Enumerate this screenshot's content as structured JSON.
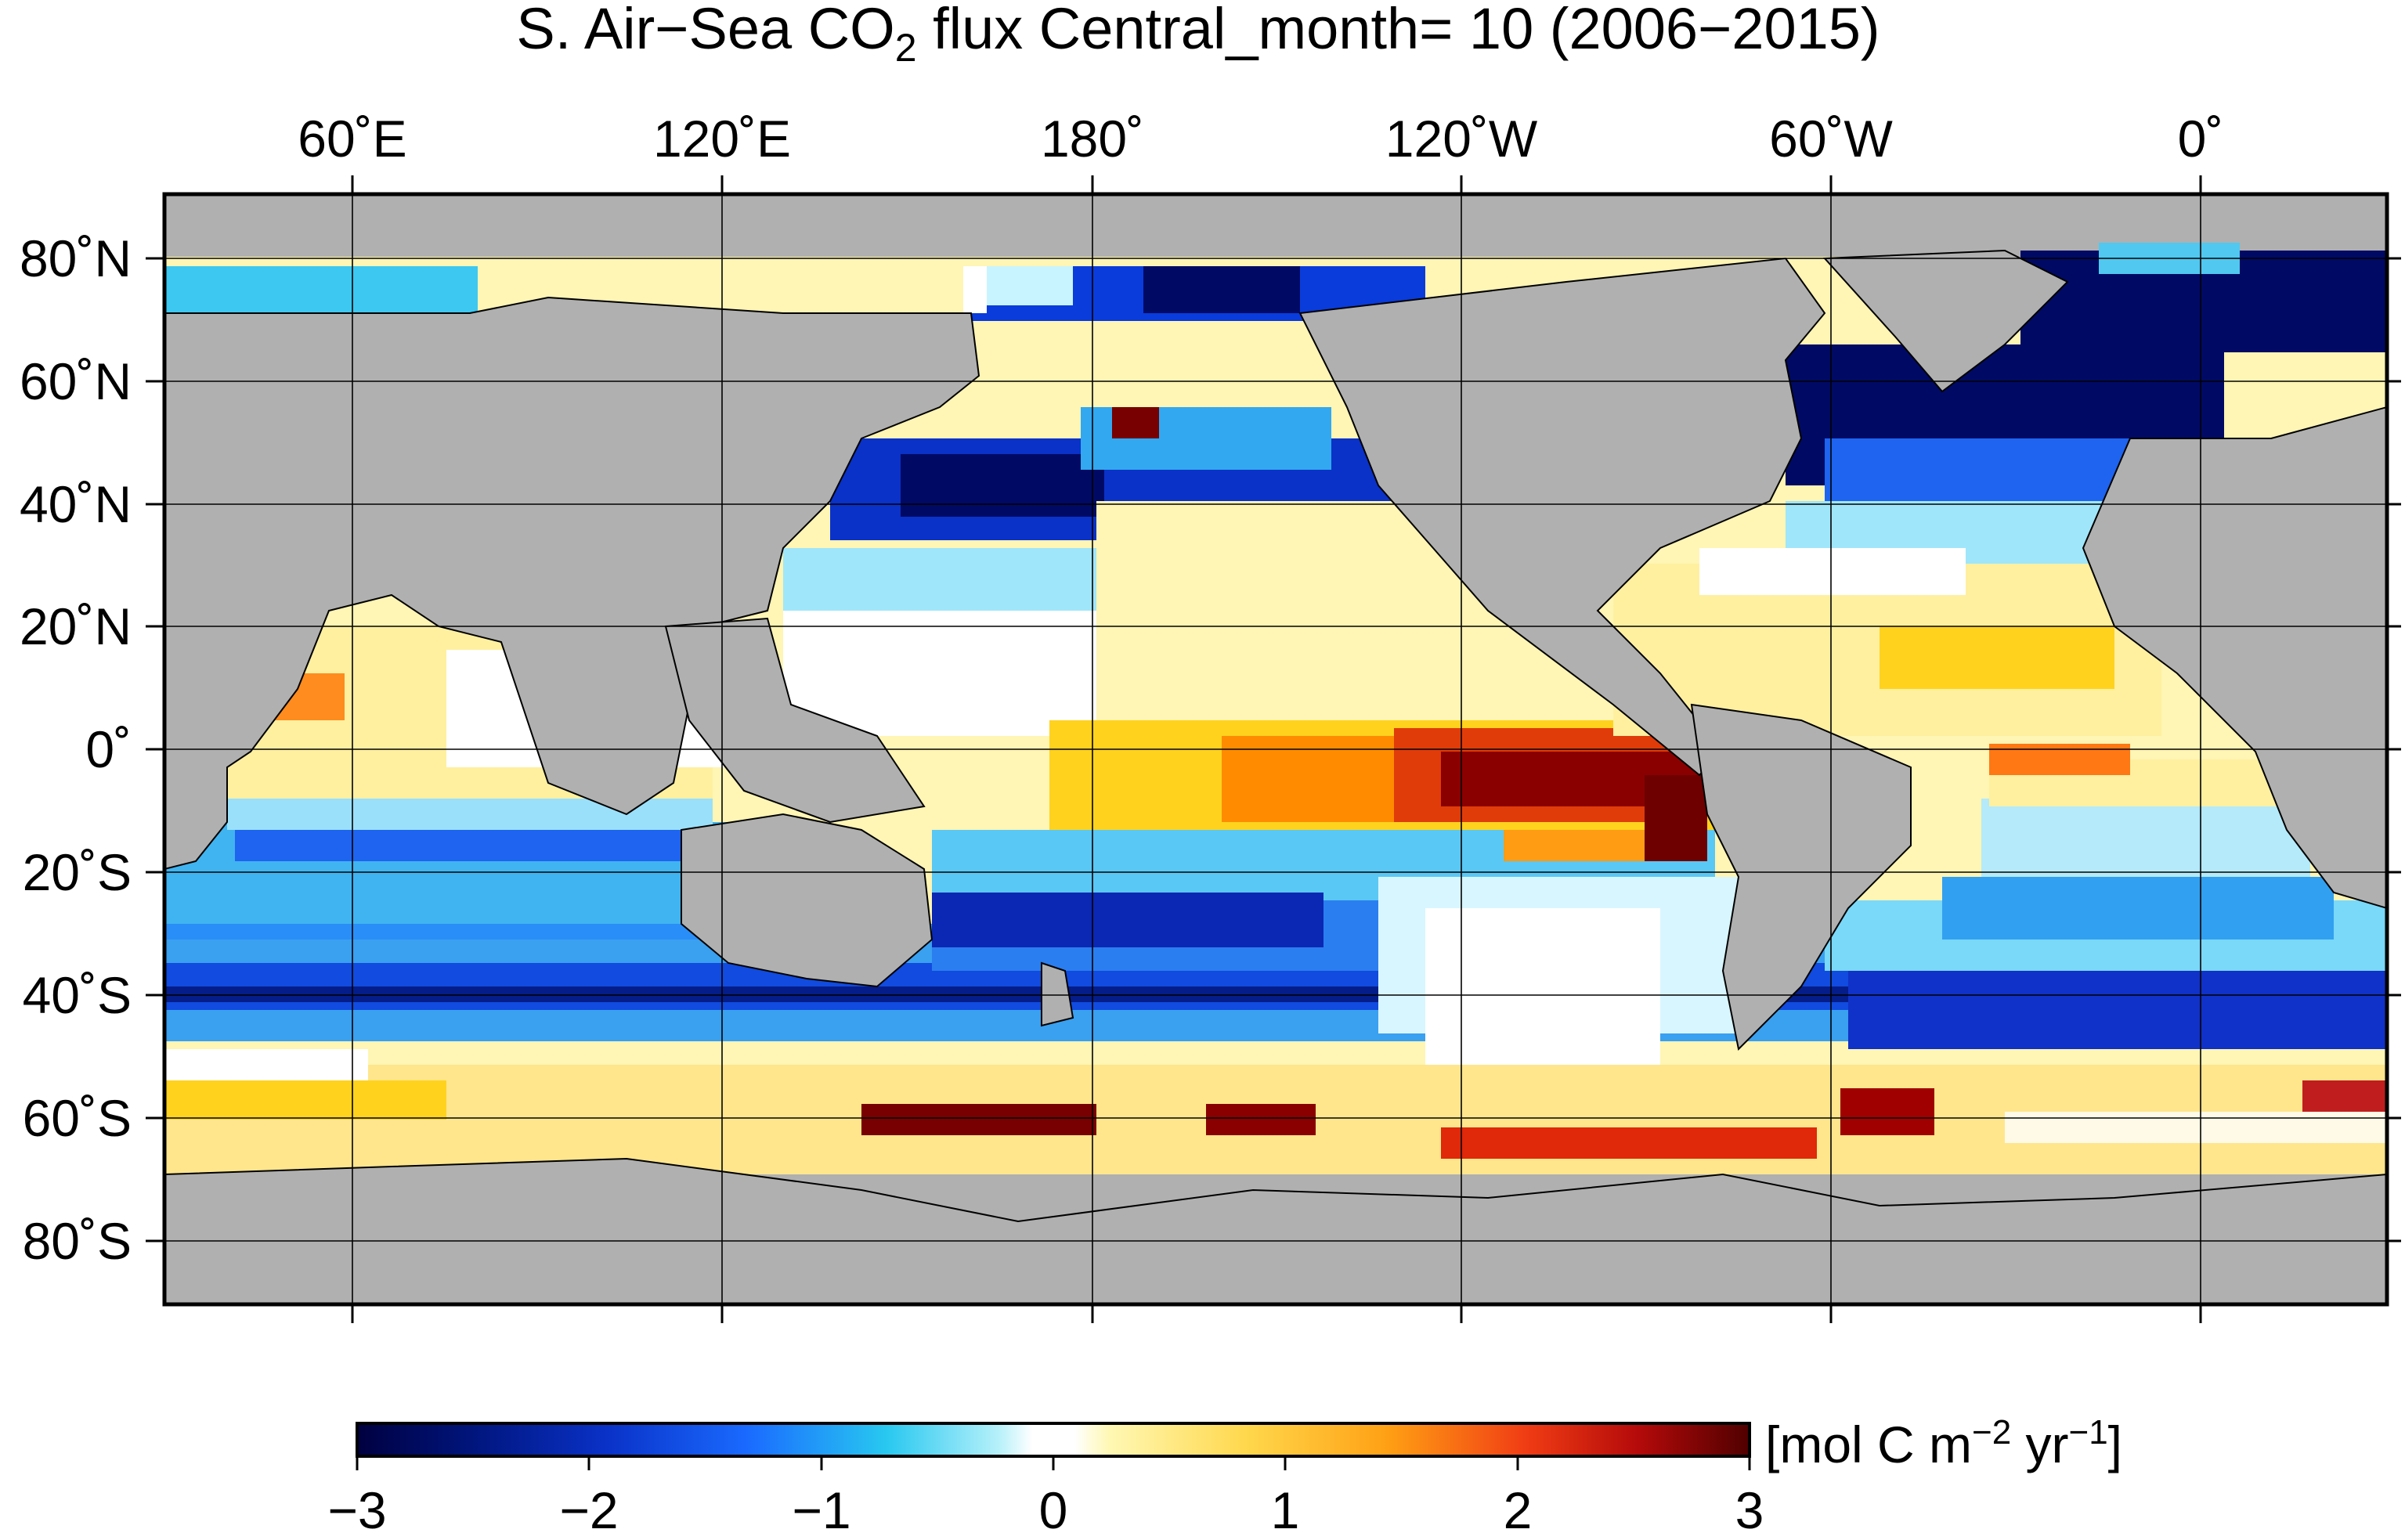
{
  "map": {
    "title_main": "S. Air−Sea CO",
    "title_sub": "2",
    "title_rest": " flux Central_month= 10 (2006−2015)",
    "top_axis_labels": [
      "60˚E",
      "120˚E",
      "180˚",
      "120˚W",
      "60˚W",
      "0˚"
    ],
    "left_axis_labels": [
      "80˚N",
      "60˚N",
      "40˚N",
      "20˚N",
      "0˚",
      "20˚S",
      "40˚S",
      "60˚S",
      "80˚S"
    ],
    "colorbar": {
      "ticks": [
        "−3",
        "−2",
        "−1",
        "0",
        "1",
        "2",
        "3"
      ],
      "unit_open": "[mol C m",
      "unit_exp1": "−2",
      "unit_mid": " yr",
      "unit_exp2": "−1",
      "unit_close": "]",
      "range": [
        -3,
        3
      ]
    },
    "colors": {
      "land": "#b0b0b0",
      "dark_blue": "#000a64",
      "blue": "#0a3cdc",
      "cyan": "#3cc8f0",
      "white": "#ffffff",
      "yellow": "#fff0a0",
      "orange": "#ff8c00",
      "dark_red": "#780000"
    }
  }
}
